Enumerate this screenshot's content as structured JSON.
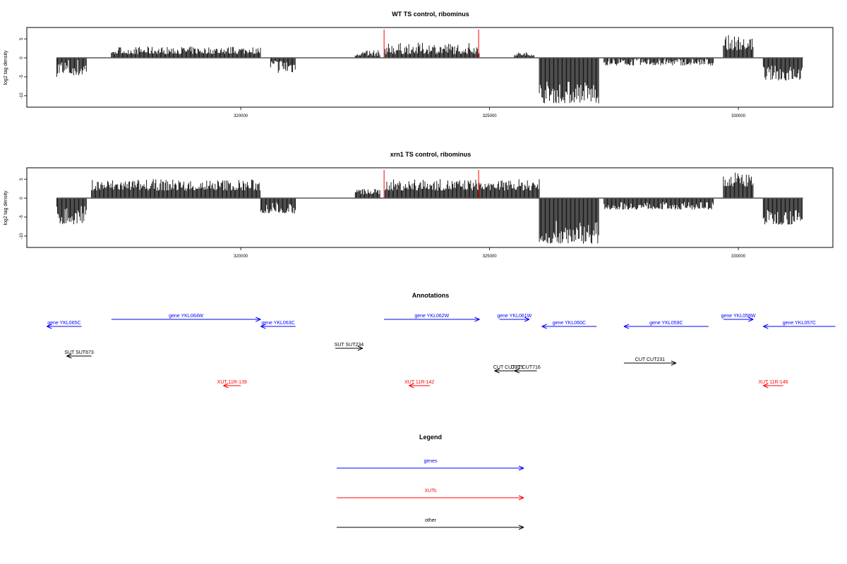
{
  "chart_data": [
    {
      "type": "bar",
      "title": "WT TS control, ribominus",
      "ylabel": "log2 tag density",
      "xlabel": "",
      "xlim": [
        315700,
        331900
      ],
      "ylim": [
        -13,
        8
      ],
      "x_ticks": [
        320000,
        325000,
        330000
      ],
      "y_ticks": [
        -10,
        -5,
        0,
        5
      ],
      "grid": false,
      "red_markers_x": [
        322880,
        324780
      ],
      "segments": [
        {
          "x": [
            316300,
            316900
          ],
          "y": [
            -5,
            0
          ],
          "sign": "neg"
        },
        {
          "x": [
            317400,
            320400
          ],
          "y": [
            1,
            3
          ],
          "sign": "pos"
        },
        {
          "x": [
            320600,
            321100
          ],
          "y": [
            -4,
            0
          ],
          "sign": "neg"
        },
        {
          "x": [
            322300,
            322800
          ],
          "y": [
            0.5,
            2
          ],
          "sign": "pos"
        },
        {
          "x": [
            322900,
            324800
          ],
          "y": [
            1,
            4
          ],
          "sign": "pos"
        },
        {
          "x": [
            325500,
            325900
          ],
          "y": [
            0.5,
            1.5
          ],
          "sign": "pos"
        },
        {
          "x": [
            326000,
            327200
          ],
          "y": [
            -12,
            -6
          ],
          "sign": "neg"
        },
        {
          "x": [
            327300,
            329500
          ],
          "y": [
            -2,
            0
          ],
          "sign": "neg"
        },
        {
          "x": [
            329700,
            330300
          ],
          "y": [
            2,
            6
          ],
          "sign": "pos"
        },
        {
          "x": [
            330500,
            331300
          ],
          "y": [
            -6,
            -2
          ],
          "sign": "neg"
        }
      ]
    },
    {
      "type": "bar",
      "title": "xrn1 TS control, ribominus",
      "ylabel": "log2 tag density",
      "xlabel": "",
      "xlim": [
        315700,
        331900
      ],
      "ylim": [
        -13,
        8
      ],
      "x_ticks": [
        320000,
        325000,
        330000
      ],
      "y_ticks": [
        -10,
        -5,
        0,
        5
      ],
      "grid": false,
      "red_markers_x": [
        322880,
        324780
      ],
      "segments": [
        {
          "x": [
            316300,
            316900
          ],
          "y": [
            -7,
            -2
          ],
          "sign": "neg"
        },
        {
          "x": [
            317000,
            320400
          ],
          "y": [
            2,
            5
          ],
          "sign": "pos"
        },
        {
          "x": [
            320400,
            321100
          ],
          "y": [
            -4,
            -1
          ],
          "sign": "neg"
        },
        {
          "x": [
            322300,
            322800
          ],
          "y": [
            1,
            2.5
          ],
          "sign": "pos"
        },
        {
          "x": [
            322900,
            326000
          ],
          "y": [
            2,
            5
          ],
          "sign": "pos"
        },
        {
          "x": [
            326000,
            327200
          ],
          "y": [
            -12,
            -6
          ],
          "sign": "neg"
        },
        {
          "x": [
            327300,
            329500
          ],
          "y": [
            -3,
            -1
          ],
          "sign": "neg"
        },
        {
          "x": [
            329700,
            330300
          ],
          "y": [
            3,
            7
          ],
          "sign": "pos"
        },
        {
          "x": [
            330500,
            331300
          ],
          "y": [
            -7,
            -3
          ],
          "sign": "neg"
        }
      ]
    }
  ],
  "annotations": {
    "title": "Annotations",
    "features": [
      {
        "label": "gene YKL065C",
        "type": "gene",
        "strand": "-",
        "x": [
          316100,
          316800
        ]
      },
      {
        "label": "gene YKL064W",
        "type": "gene",
        "strand": "+",
        "x": [
          317400,
          320400
        ]
      },
      {
        "label": "gene YKL063C",
        "type": "gene",
        "strand": "-",
        "x": [
          320400,
          321100
        ]
      },
      {
        "label": "gene YKL062W",
        "type": "gene",
        "strand": "+",
        "x": [
          322880,
          324800
        ]
      },
      {
        "label": "gene YKL061W",
        "type": "gene",
        "strand": "+",
        "x": [
          325200,
          325800
        ]
      },
      {
        "label": "gene YKL060C",
        "type": "gene",
        "strand": "-",
        "x": [
          326050,
          327150
        ]
      },
      {
        "label": "gene YKL059C",
        "type": "gene",
        "strand": "-",
        "x": [
          327700,
          329400
        ]
      },
      {
        "label": "gene YKL058W",
        "type": "gene",
        "strand": "+",
        "x": [
          329700,
          330300
        ]
      },
      {
        "label": "gene YKL057C",
        "type": "gene",
        "strand": "-",
        "x": [
          330500,
          331950
        ]
      },
      {
        "label": "SUT SUT673",
        "type": "other",
        "strand": "-",
        "x": [
          316500,
          317000
        ]
      },
      {
        "label": "SUT SUT234",
        "type": "other",
        "strand": "+",
        "x": [
          321900,
          322450
        ]
      },
      {
        "label": "CUT CUT715",
        "type": "other",
        "strand": "-",
        "x": [
          325100,
          325650
        ]
      },
      {
        "label": "CUT CUT716",
        "type": "other",
        "strand": "-",
        "x": [
          325500,
          325950
        ]
      },
      {
        "label": "CUT CUT231",
        "type": "other",
        "strand": "+",
        "x": [
          327700,
          328750
        ]
      },
      {
        "label": "XUT 11R-139",
        "type": "xut",
        "strand": "-",
        "x": [
          319650,
          320000
        ]
      },
      {
        "label": "XUT 11R-142",
        "type": "xut",
        "strand": "-",
        "x": [
          323380,
          323800
        ]
      },
      {
        "label": "XUT 11R-146",
        "type": "xut",
        "strand": "-",
        "x": [
          330500,
          330900
        ]
      }
    ]
  },
  "legend": {
    "title": "Legend",
    "items": [
      {
        "label": "genes",
        "color": "#0000ff"
      },
      {
        "label": "XUTs",
        "color": "#ff0000"
      },
      {
        "label": "other",
        "color": "#000000"
      }
    ]
  },
  "colors": {
    "gene": "#0000ff",
    "xut": "#ff0000",
    "other": "#000000",
    "marker": "#ff0000"
  }
}
